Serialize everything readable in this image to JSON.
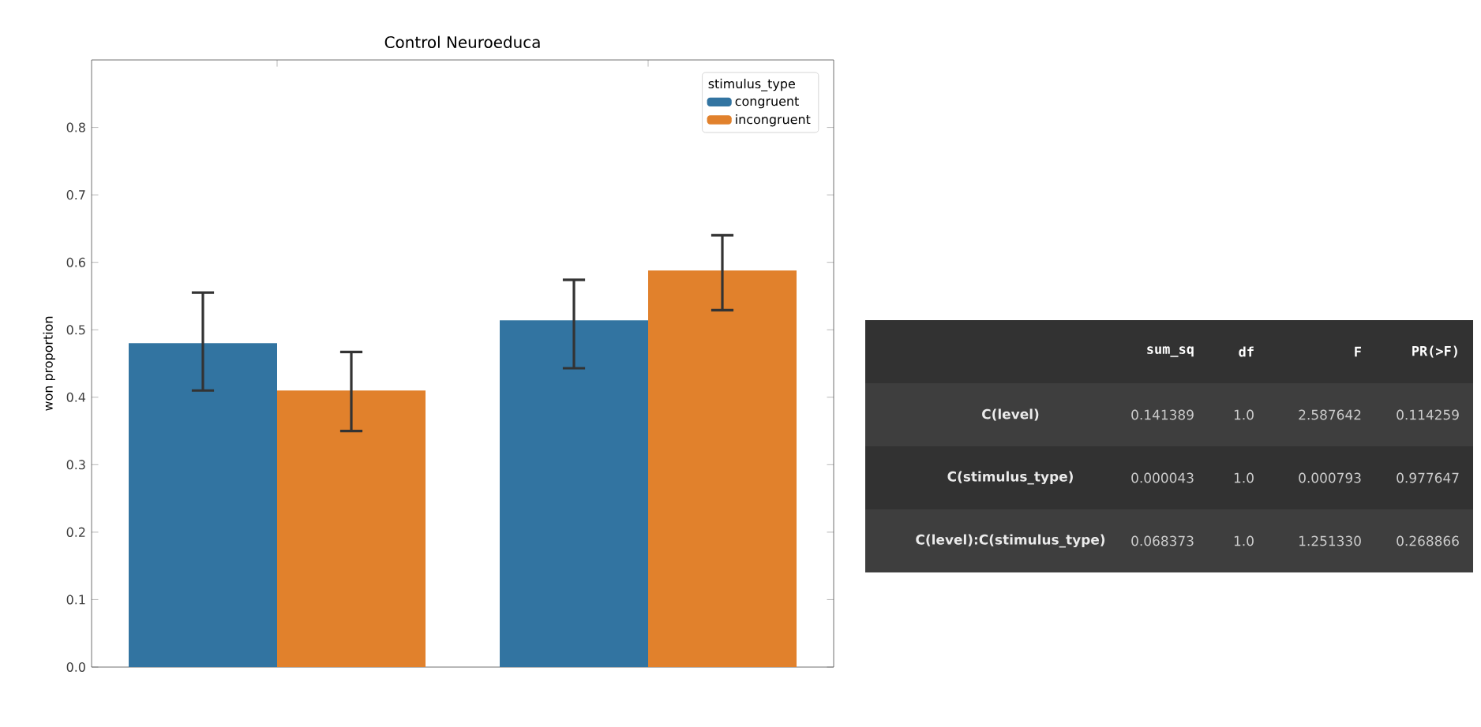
{
  "chart_data": {
    "type": "bar",
    "title": "Control Neuroeduca",
    "ylabel": "won proportion",
    "legend_title": "stimulus_type",
    "categories": [
      null,
      null
    ],
    "series": [
      {
        "name": "congruent",
        "color": "#3274a1",
        "values": [
          0.48,
          0.514
        ],
        "errors": [
          [
            0.41,
            0.555
          ],
          [
            0.443,
            0.574
          ]
        ]
      },
      {
        "name": "incongruent",
        "color": "#e1812c",
        "values": [
          0.41,
          0.588
        ],
        "errors": [
          [
            0.35,
            0.467
          ],
          [
            0.529,
            0.64
          ]
        ]
      }
    ],
    "ylim": [
      0,
      0.9
    ],
    "yticks": [
      {
        "value": 0,
        "label": "0.0"
      },
      {
        "value": 0.1,
        "label": "0.1"
      },
      {
        "value": 0.2,
        "label": "0.2"
      },
      {
        "value": 0.3,
        "label": "0.3"
      },
      {
        "value": 0.4,
        "label": "0.4"
      },
      {
        "value": 0.5,
        "label": "0.5"
      },
      {
        "value": 0.6,
        "label": "0.6"
      },
      {
        "value": 0.7,
        "label": "0.7"
      },
      {
        "value": 0.8,
        "label": "0.8"
      }
    ],
    "legend": "top right",
    "annotations": [
      "sum_sq",
      "df",
      "F",
      "PR(>F)",
      "C(level)",
      "0.141389",
      "1.0",
      "2.587642",
      "0.114259",
      "C(stimulus_type)",
      "0.000043",
      "1.0",
      "0.000793",
      "0.977647",
      "C(level):C(stimulus_type)",
      "0.068373",
      "1.0",
      "1.251330",
      "0.268866"
    ]
  }
}
